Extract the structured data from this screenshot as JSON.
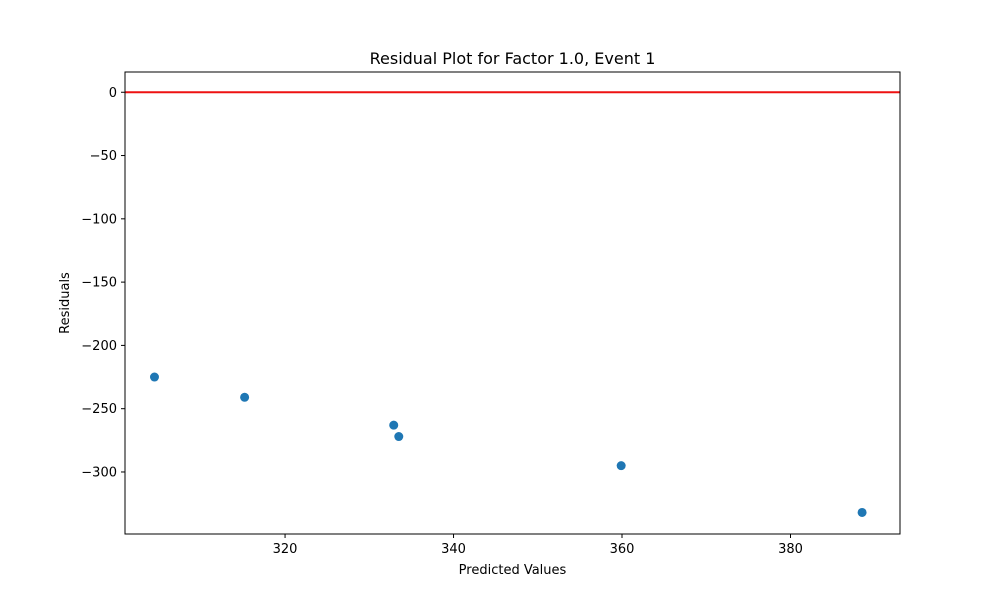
{
  "chart_data": {
    "type": "scatter",
    "title": "Residual Plot for Factor 1.0, Event 1",
    "xlabel": "Predicted Values",
    "ylabel": "Residuals",
    "xlim": [
      301,
      393
    ],
    "ylim": [
      -349,
      16
    ],
    "xticks": [
      320,
      340,
      360,
      380
    ],
    "yticks": [
      0,
      -50,
      -100,
      -150,
      -200,
      -250,
      -300
    ],
    "xtick_labels": [
      "320",
      "340",
      "360",
      "380"
    ],
    "ytick_labels": [
      "0",
      "−50",
      "−100",
      "−150",
      "−200",
      "−250",
      "−300"
    ],
    "points": [
      {
        "x": 304.5,
        "y": -225
      },
      {
        "x": 315.2,
        "y": -241
      },
      {
        "x": 332.9,
        "y": -263
      },
      {
        "x": 333.5,
        "y": -272
      },
      {
        "x": 359.9,
        "y": -295
      },
      {
        "x": 388.5,
        "y": -332
      }
    ],
    "reference_line": {
      "y": 0,
      "color": "#ee1111"
    },
    "point_color": "#1f77b4",
    "grid": false,
    "legend": false
  }
}
